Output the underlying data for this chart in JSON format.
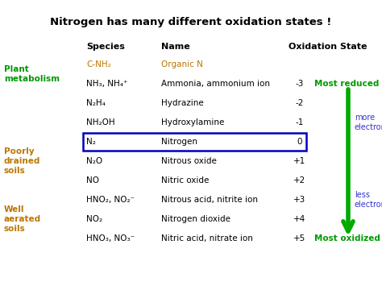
{
  "title": "Nitrogen has many different oxidation states !",
  "bg_color": "#ffffff",
  "title_color": "#000000",
  "headers": [
    "Species",
    "Name",
    "Oxidation State"
  ],
  "rows": [
    {
      "species": "C-NH₂",
      "name": "Organic N",
      "ox_state": "",
      "species_color": "#bb7700",
      "name_color": "#bb7700",
      "highlight": false
    },
    {
      "species": "NH₃, NH₄⁺",
      "name": "Ammonia, ammonium ion",
      "ox_state": "-3",
      "species_color": "#000000",
      "name_color": "#000000",
      "highlight": false
    },
    {
      "species": "N₂H₄",
      "name": "Hydrazine",
      "ox_state": "-2",
      "species_color": "#000000",
      "name_color": "#000000",
      "highlight": false
    },
    {
      "species": "NH₂OH",
      "name": "Hydroxylamine",
      "ox_state": "-1",
      "species_color": "#000000",
      "name_color": "#000000",
      "highlight": false
    },
    {
      "species": "N₂",
      "name": "Nitrogen",
      "ox_state": "0",
      "species_color": "#000000",
      "name_color": "#000000",
      "highlight": true
    },
    {
      "species": "N₂O",
      "name": "Nitrous oxide",
      "ox_state": "+1",
      "species_color": "#000000",
      "name_color": "#000000",
      "highlight": false
    },
    {
      "species": "NO",
      "name": "Nitric oxide",
      "ox_state": "+2",
      "species_color": "#000000",
      "name_color": "#000000",
      "highlight": false
    },
    {
      "species": "HNO₂, NO₂⁻",
      "name": "Nitrous acid, nitrite ion",
      "ox_state": "+3",
      "species_color": "#000000",
      "name_color": "#000000",
      "highlight": false
    },
    {
      "species": "NO₂",
      "name": "Nitrogen dioxide",
      "ox_state": "+4",
      "species_color": "#000000",
      "name_color": "#000000",
      "highlight": false
    },
    {
      "species": "HNO₃, NO₃⁻",
      "name": "Nitric acid, nitrate ion",
      "ox_state": "+5",
      "species_color": "#000000",
      "name_color": "#000000",
      "highlight": false
    }
  ],
  "most_reduced_text": "Most reduced",
  "most_oxidized_text": "Most oxidized",
  "more_electrons_text": "more\nelectrons",
  "less_electrons_text": "less\nelectrons",
  "arrow_color": "#00aa00",
  "reduced_color": "#009900",
  "oxidized_color": "#009900",
  "electrons_color": "#3333cc",
  "plant_label": "Plant\nmetabolism",
  "plant_color": "#009900",
  "poorly_label": "Poorly\ndrained\nsoils",
  "poorly_color": "#bb7700",
  "well_label": "Well\naerated\nsoils",
  "well_color": "#bb7700"
}
